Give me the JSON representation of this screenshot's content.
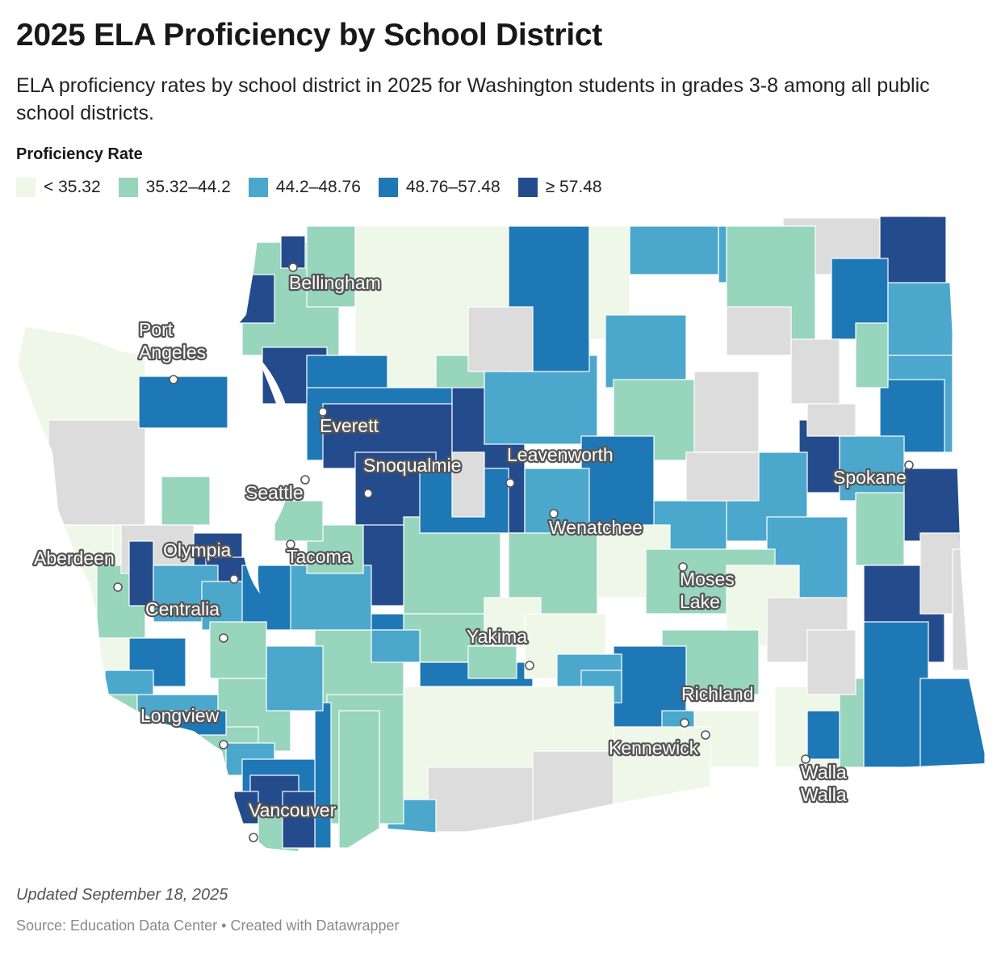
{
  "title": "2025 ELA Proficiency by School District",
  "subtitle": "ELA proficiency rates by school district in 2025 for Washington students in grades 3-8 among all public school districts.",
  "legend": {
    "title": "Proficiency Rate",
    "items": [
      {
        "label": "< 35.32",
        "color": "#eef7e8"
      },
      {
        "label": "35.32–44.2",
        "color": "#97d5bd"
      },
      {
        "label": "44.2–48.76",
        "color": "#4ba7cb"
      },
      {
        "label": "48.76–57.48",
        "color": "#1f78b6"
      },
      {
        "label": "≥ 57.48",
        "color": "#244b8c"
      }
    ],
    "no_data_color": "#dcdcdc"
  },
  "cities": [
    {
      "lines": [
        "Bellingham"
      ]
    },
    {
      "lines": [
        "Port",
        "Angeles"
      ]
    },
    {
      "lines": [
        "Everett"
      ]
    },
    {
      "lines": [
        "Seattle"
      ]
    },
    {
      "lines": [
        "Snoqualmie"
      ]
    },
    {
      "lines": [
        "Leavenworth"
      ]
    },
    {
      "lines": [
        "Spokane"
      ]
    },
    {
      "lines": [
        "Wenatchee"
      ]
    },
    {
      "lines": [
        "Aberdeen"
      ]
    },
    {
      "lines": [
        "Olympia"
      ]
    },
    {
      "lines": [
        "Tacoma"
      ]
    },
    {
      "lines": [
        "Moses",
        "Lake"
      ]
    },
    {
      "lines": [
        "Centralia"
      ]
    },
    {
      "lines": [
        "Yakima"
      ]
    },
    {
      "lines": [
        "Richland"
      ]
    },
    {
      "lines": [
        "Longview"
      ]
    },
    {
      "lines": [
        "Kennewick"
      ]
    },
    {
      "lines": [
        "Walla",
        "Walla"
      ]
    },
    {
      "lines": [
        "Vancouver"
      ]
    }
  ],
  "footer": {
    "updated": "Updated September 18, 2025",
    "source": "Source: Education Data Center • Created with Datawrapper"
  }
}
